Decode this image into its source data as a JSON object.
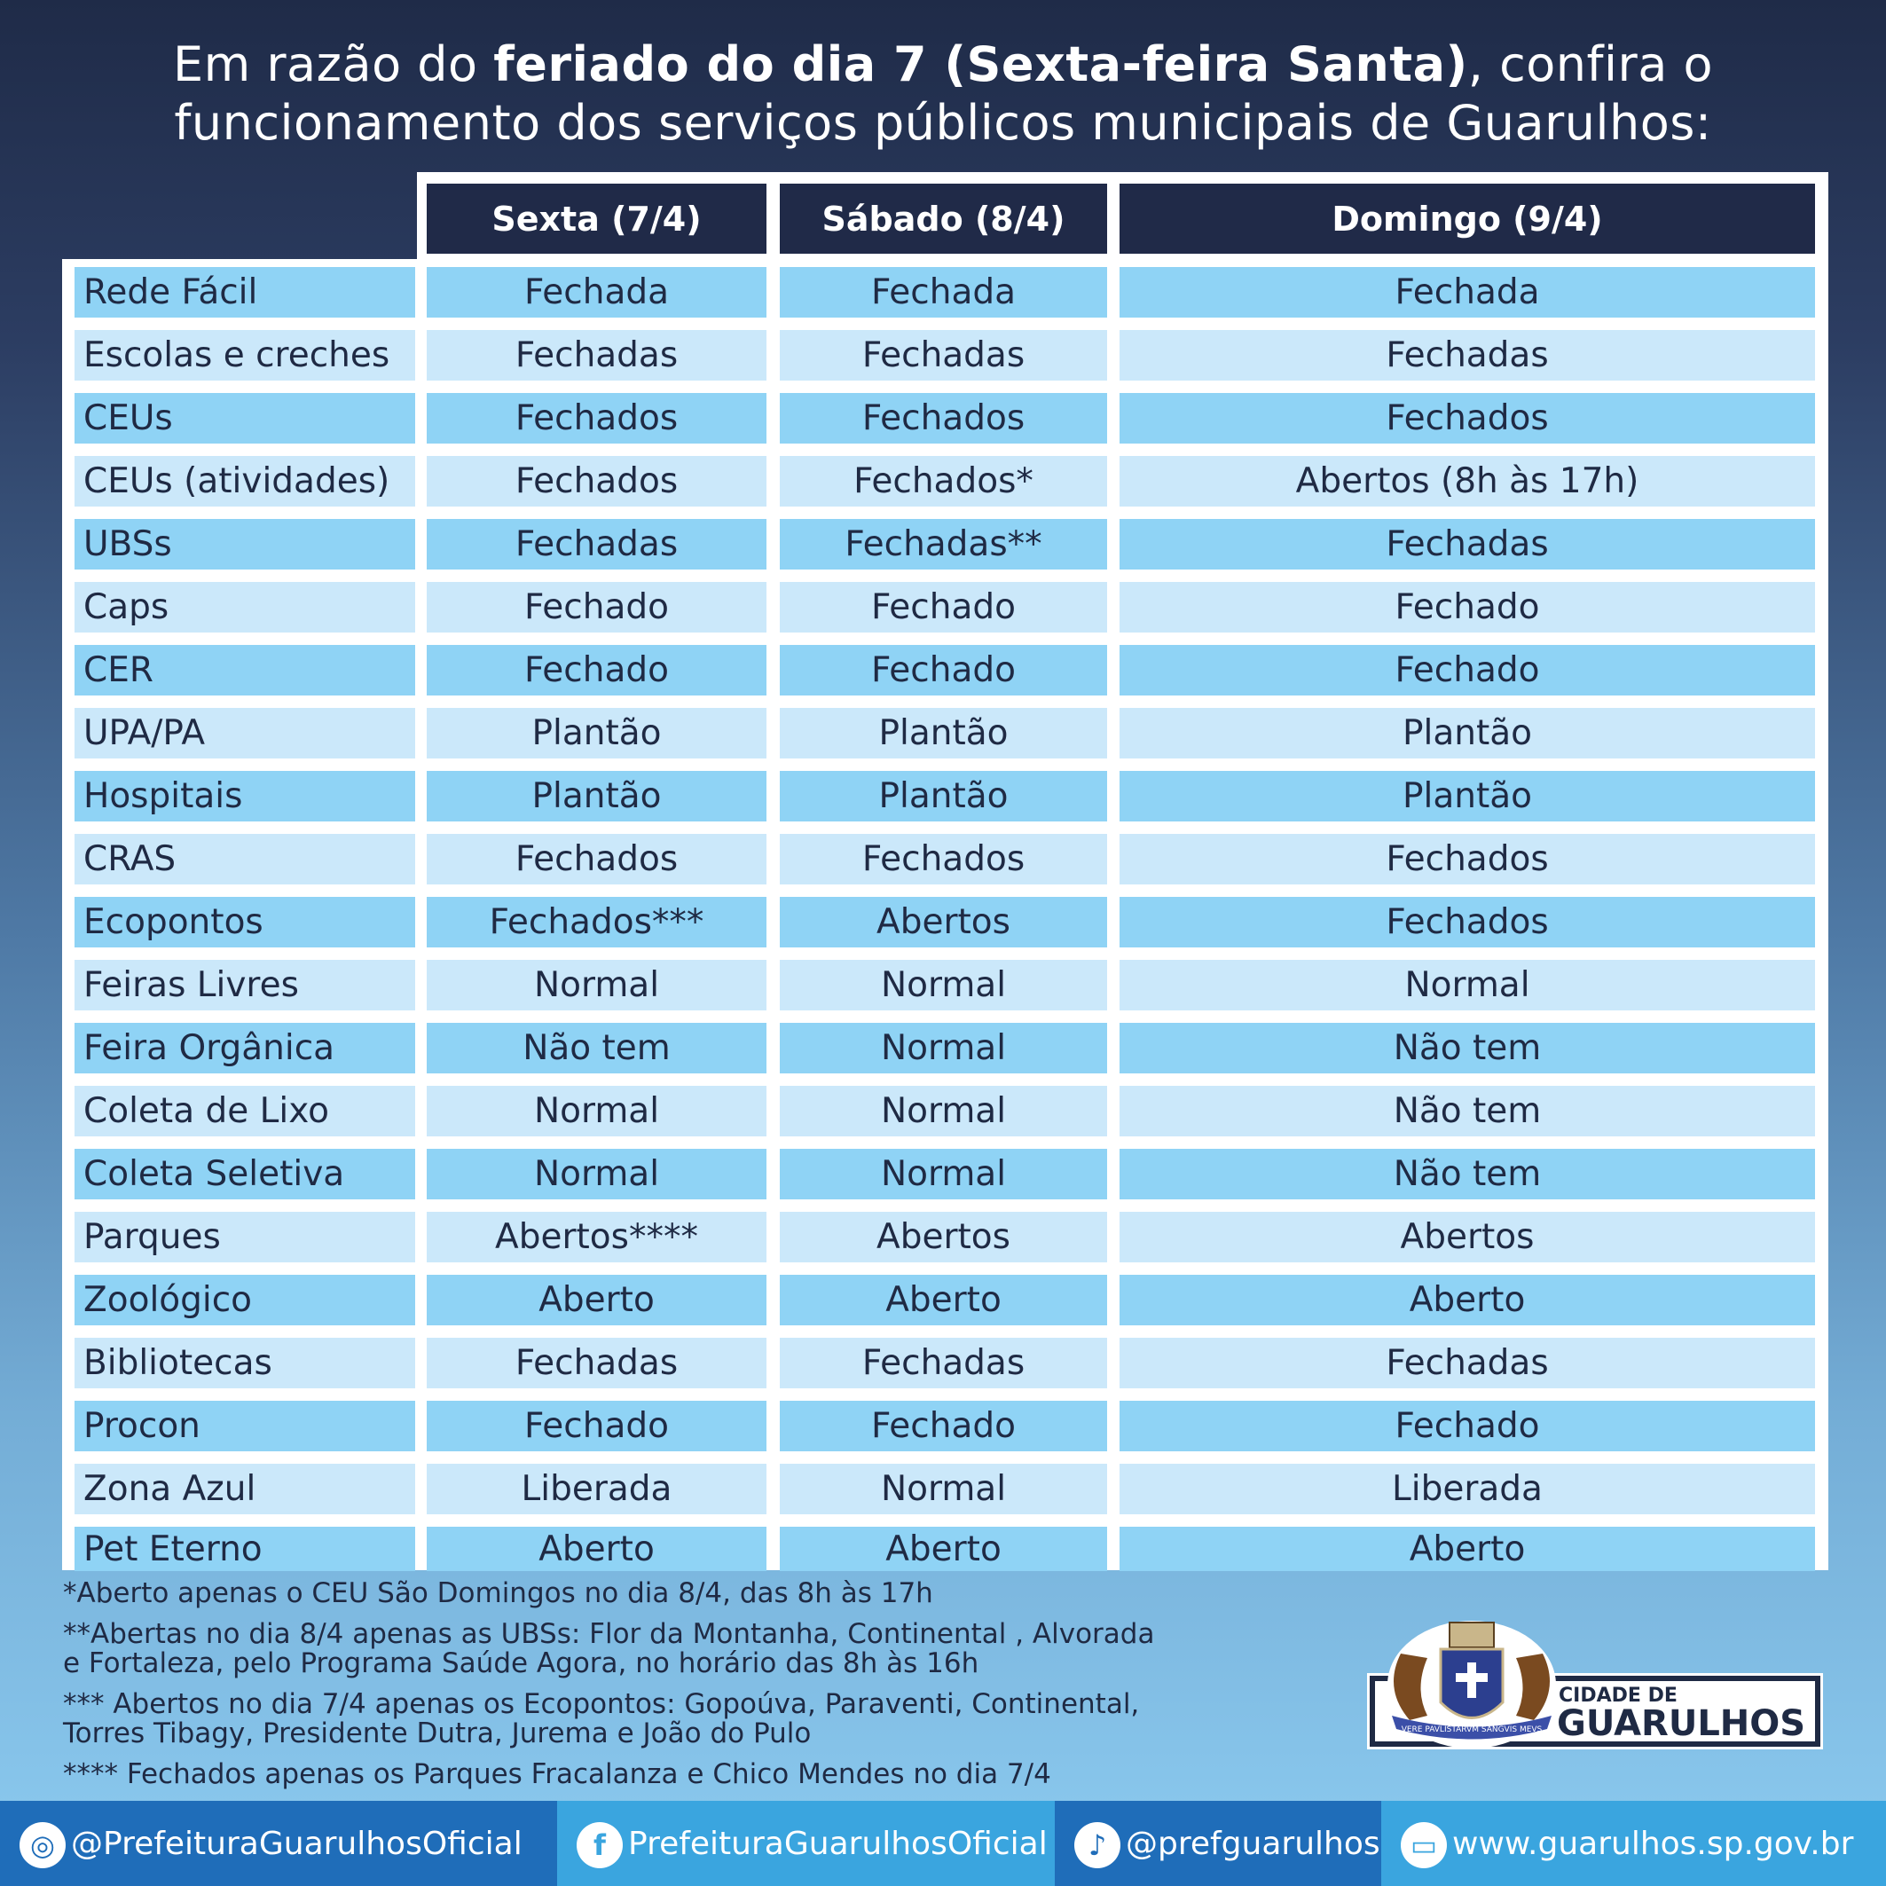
{
  "title": {
    "line1_pre": "Em razão do ",
    "line1_bold": "feriado do dia 7 (Sexta-feira Santa)",
    "line1_post": ", confira o",
    "line2": "funcionamento dos serviços públicos municipais de Guarulhos:"
  },
  "columns": [
    "Sexta (7/4)",
    "Sábado (8/4)",
    "Domingo (9/4)"
  ],
  "rows": [
    {
      "service": "Rede Fácil",
      "values": [
        "Fechada",
        "Fechada",
        "Fechada"
      ]
    },
    {
      "service": "Escolas e creches",
      "values": [
        "Fechadas",
        "Fechadas",
        "Fechadas"
      ]
    },
    {
      "service": "CEUs",
      "values": [
        "Fechados",
        "Fechados",
        "Fechados"
      ]
    },
    {
      "service": "CEUs (atividades)",
      "values": [
        "Fechados",
        "Fechados*",
        "Abertos (8h às 17h)"
      ]
    },
    {
      "service": "UBSs",
      "values": [
        "Fechadas",
        "Fechadas**",
        "Fechadas"
      ]
    },
    {
      "service": "Caps",
      "values": [
        "Fechado",
        "Fechado",
        "Fechado"
      ]
    },
    {
      "service": "CER",
      "values": [
        "Fechado",
        "Fechado",
        "Fechado"
      ]
    },
    {
      "service": "UPA/PA",
      "values": [
        "Plantão",
        "Plantão",
        "Plantão"
      ]
    },
    {
      "service": "Hospitais",
      "values": [
        "Plantão",
        "Plantão",
        "Plantão"
      ]
    },
    {
      "service": "CRAS",
      "values": [
        "Fechados",
        "Fechados",
        "Fechados"
      ]
    },
    {
      "service": "Ecopontos",
      "values": [
        "Fechados***",
        "Abertos",
        "Fechados"
      ]
    },
    {
      "service": "Feiras Livres",
      "values": [
        "Normal",
        "Normal",
        "Normal"
      ]
    },
    {
      "service": "Feira Orgânica",
      "values": [
        "Não tem",
        "Normal",
        "Não tem"
      ]
    },
    {
      "service": "Coleta de Lixo",
      "values": [
        "Normal",
        "Normal",
        "Não tem"
      ]
    },
    {
      "service": "Coleta Seletiva",
      "values": [
        "Normal",
        "Normal",
        "Não tem"
      ]
    },
    {
      "service": "Parques",
      "values": [
        "Abertos****",
        "Abertos",
        "Abertos"
      ]
    },
    {
      "service": "Zoológico",
      "values": [
        "Aberto",
        "Aberto",
        "Aberto"
      ]
    },
    {
      "service": "Bibliotecas",
      "values": [
        "Fechadas",
        "Fechadas",
        "Fechadas"
      ]
    },
    {
      "service": "Procon",
      "values": [
        "Fechado",
        "Fechado",
        "Fechado"
      ]
    },
    {
      "service": "Zona Azul",
      "values": [
        "Liberada",
        "Normal",
        "Liberada"
      ]
    },
    {
      "service": "Pet Eterno",
      "values": [
        "Aberto",
        "Aberto",
        "Aberto"
      ]
    }
  ],
  "notes": [
    "*Aberto apenas o CEU São Domingos no dia 8/4, das 8h às 17h",
    "**Abertas  no dia 8/4 apenas as  UBSs:  Flor da Montanha, Continental , Alvorada\ne Fortaleza,  pelo Programa Saúde Agora, no horário das 8h às 16h",
    "*** Abertos no dia 7/4 apenas os Ecopontos:  Gopoúva, Paraventi, Continental,\nTorres Tibagy, Presidente Dutra, Jurema e João do Pulo",
    "**** Fechados apenas  os Parques Fracalanza e Chico Mendes no dia 7/4"
  ],
  "logo": {
    "line1": "CIDADE DE",
    "line2": "GUARULHOS",
    "motto": "VERE PAVLISTARVM SANGVIS MEVS"
  },
  "footer": [
    {
      "icon": "instagram-icon",
      "label": "@PrefeituraGuarulhosOficial",
      "color": "#1f6db9"
    },
    {
      "icon": "facebook-icon",
      "label": "PrefeituraGuarulhosOficial",
      "color": "#3aa5df"
    },
    {
      "icon": "tiktok-icon",
      "label": "@prefguarulhos",
      "color": "#1f6db9"
    },
    {
      "icon": "monitor-icon",
      "label": "www.guarulhos.sp.gov.br",
      "color": "#3aa5df"
    }
  ],
  "colors": {
    "header": "#202a48",
    "row_dark": "#8fd3f5",
    "row_light": "#cbe8fa",
    "text": "#1f2a44"
  }
}
